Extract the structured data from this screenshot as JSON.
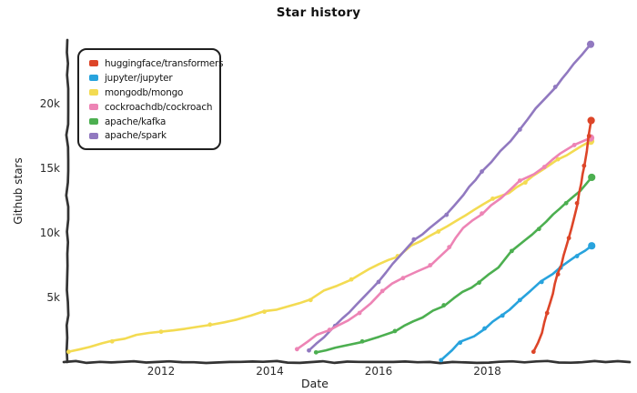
{
  "figure": {
    "title": "Star history",
    "x_axis_label": "Date",
    "y_axis_label": "Github stars"
  },
  "chart_data": {
    "type": "line",
    "title": "Star history",
    "xlabel": "Date",
    "ylabel": "Github stars",
    "x_unit": "year",
    "y_unit": "stars (thousands)",
    "xlim": [
      2010.2,
      2020.6
    ],
    "ylim": [
      0,
      24.9
    ],
    "grid": false,
    "legend_position": "top-left",
    "x_ticks": [
      {
        "label": "2012",
        "value": 2012
      },
      {
        "label": "2014",
        "value": 2014
      },
      {
        "label": "2016",
        "value": 2016
      },
      {
        "label": "2018",
        "value": 2018
      }
    ],
    "y_ticks": [
      {
        "label": "5k",
        "value": 5
      },
      {
        "label": "10k",
        "value": 10
      },
      {
        "label": "15k",
        "value": 15
      },
      {
        "label": "20k",
        "value": 20
      }
    ],
    "series": [
      {
        "name": "huggingface/transformers",
        "color": "#dd4528",
        "points": [
          [
            2018.85,
            0.8
          ],
          [
            2019.0,
            2.3
          ],
          [
            2019.1,
            3.8
          ],
          [
            2019.2,
            5.3
          ],
          [
            2019.3,
            6.8
          ],
          [
            2019.4,
            8.2
          ],
          [
            2019.5,
            9.6
          ],
          [
            2019.58,
            11.0
          ],
          [
            2019.65,
            12.3
          ],
          [
            2019.72,
            13.8
          ],
          [
            2019.78,
            15.2
          ],
          [
            2019.83,
            16.4
          ],
          [
            2019.87,
            17.5
          ],
          [
            2019.91,
            18.7
          ]
        ]
      },
      {
        "name": "jupyter/jupyter",
        "color": "#28a3dd",
        "points": [
          [
            2017.15,
            0.15
          ],
          [
            2017.35,
            0.9
          ],
          [
            2017.5,
            1.5
          ],
          [
            2017.75,
            2.0
          ],
          [
            2017.95,
            2.6
          ],
          [
            2018.1,
            3.1
          ],
          [
            2018.28,
            3.6
          ],
          [
            2018.42,
            4.1
          ],
          [
            2018.6,
            4.8
          ],
          [
            2018.8,
            5.5
          ],
          [
            2019.0,
            6.2
          ],
          [
            2019.2,
            6.8
          ],
          [
            2019.35,
            7.3
          ],
          [
            2019.5,
            7.8
          ],
          [
            2019.65,
            8.2
          ],
          [
            2019.8,
            8.6
          ],
          [
            2019.92,
            9.0
          ]
        ]
      },
      {
        "name": "mongodb/mongo",
        "color": "#f3db52",
        "points": [
          [
            2010.3,
            0.8
          ],
          [
            2010.7,
            1.2
          ],
          [
            2011.1,
            1.6
          ],
          [
            2011.55,
            2.1
          ],
          [
            2012.0,
            2.35
          ],
          [
            2012.45,
            2.55
          ],
          [
            2012.9,
            2.9
          ],
          [
            2013.4,
            3.3
          ],
          [
            2013.9,
            3.9
          ],
          [
            2014.35,
            4.3
          ],
          [
            2014.75,
            4.8
          ],
          [
            2015.0,
            5.5
          ],
          [
            2015.5,
            6.4
          ],
          [
            2016.0,
            7.6
          ],
          [
            2016.35,
            8.2
          ],
          [
            2016.6,
            9.0
          ],
          [
            2017.1,
            10.1
          ],
          [
            2017.6,
            11.4
          ],
          [
            2018.1,
            12.65
          ],
          [
            2018.4,
            13.1
          ],
          [
            2018.7,
            13.9
          ],
          [
            2019.0,
            14.9
          ],
          [
            2019.3,
            15.7
          ],
          [
            2019.6,
            16.4
          ],
          [
            2019.9,
            17.1
          ]
        ]
      },
      {
        "name": "cockroachdb/cockroach",
        "color": "#ed84b5",
        "points": [
          [
            2014.5,
            1.0
          ],
          [
            2014.87,
            2.1
          ],
          [
            2015.1,
            2.5
          ],
          [
            2015.45,
            3.2
          ],
          [
            2015.65,
            3.8
          ],
          [
            2015.85,
            4.6
          ],
          [
            2016.07,
            5.5
          ],
          [
            2016.25,
            6.1
          ],
          [
            2016.45,
            6.5
          ],
          [
            2016.7,
            7.0
          ],
          [
            2016.95,
            7.5
          ],
          [
            2017.1,
            8.0
          ],
          [
            2017.3,
            8.9
          ],
          [
            2017.55,
            10.35
          ],
          [
            2017.9,
            11.5
          ],
          [
            2018.25,
            12.7
          ],
          [
            2018.6,
            14.05
          ],
          [
            2018.85,
            14.6
          ],
          [
            2019.05,
            15.1
          ],
          [
            2019.35,
            16.2
          ],
          [
            2019.6,
            16.8
          ],
          [
            2019.9,
            17.35
          ]
        ]
      },
      {
        "name": "apache/kafka",
        "color": "#4caf50",
        "points": [
          [
            2014.85,
            0.75
          ],
          [
            2015.2,
            1.1
          ],
          [
            2015.7,
            1.6
          ],
          [
            2016.0,
            2.0
          ],
          [
            2016.3,
            2.4
          ],
          [
            2016.8,
            3.5
          ],
          [
            2017.2,
            4.4
          ],
          [
            2017.55,
            5.45
          ],
          [
            2017.85,
            6.15
          ],
          [
            2018.2,
            7.3
          ],
          [
            2018.45,
            8.6
          ],
          [
            2018.7,
            9.4
          ],
          [
            2018.95,
            10.3
          ],
          [
            2019.2,
            11.4
          ],
          [
            2019.45,
            12.3
          ],
          [
            2019.7,
            13.3
          ],
          [
            2019.92,
            14.3
          ]
        ]
      },
      {
        "name": "apache/spark",
        "color": "#9179c0",
        "points": [
          [
            2014.72,
            0.9
          ],
          [
            2015.0,
            1.9
          ],
          [
            2015.2,
            2.8
          ],
          [
            2015.6,
            4.4
          ],
          [
            2016.0,
            6.2
          ],
          [
            2016.4,
            8.3
          ],
          [
            2016.65,
            9.5
          ],
          [
            2016.95,
            10.4
          ],
          [
            2017.25,
            11.4
          ],
          [
            2017.55,
            12.9
          ],
          [
            2017.9,
            14.75
          ],
          [
            2018.25,
            16.3
          ],
          [
            2018.6,
            18.0
          ],
          [
            2018.9,
            19.6
          ],
          [
            2019.25,
            21.3
          ],
          [
            2019.6,
            23.1
          ],
          [
            2019.9,
            24.6
          ]
        ]
      }
    ]
  }
}
